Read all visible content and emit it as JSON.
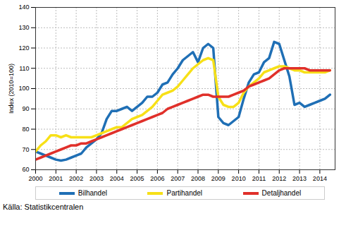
{
  "chart_data": {
    "type": "line",
    "y_label": "Index (2010=100)",
    "source": "Källa: Statistikcentralen",
    "x": [
      2000,
      2000.25,
      2000.5,
      2000.75,
      2001,
      2001.25,
      2001.5,
      2001.75,
      2002,
      2002.25,
      2002.5,
      2002.75,
      2003,
      2003.25,
      2003.5,
      2003.75,
      2004,
      2004.25,
      2004.5,
      2004.75,
      2005,
      2005.25,
      2005.5,
      2005.75,
      2006,
      2006.25,
      2006.5,
      2006.75,
      2007,
      2007.25,
      2007.5,
      2007.75,
      2008,
      2008.25,
      2008.5,
      2008.75,
      2009,
      2009.25,
      2009.5,
      2009.75,
      2010,
      2010.25,
      2010.5,
      2010.75,
      2011,
      2011.25,
      2011.5,
      2011.75,
      2012,
      2012.25,
      2012.5,
      2012.75,
      2013,
      2013.25,
      2013.5,
      2013.75,
      2014,
      2014.25,
      2014.5
    ],
    "series": [
      {
        "name": "Bilhandel",
        "color": "#1f6fb5",
        "values": [
          69,
          68,
          67,
          66,
          65,
          64.5,
          65,
          66,
          67,
          68,
          71,
          73,
          75,
          78,
          85,
          89,
          89,
          90,
          91,
          89,
          91,
          93,
          96,
          96,
          98,
          102,
          103,
          107,
          110,
          114,
          116,
          118,
          113,
          120,
          122,
          120,
          86,
          83,
          82,
          84,
          86,
          95,
          103,
          107,
          108,
          113,
          115,
          123,
          122,
          114,
          106,
          92,
          93,
          91,
          92,
          93,
          94,
          95,
          97
        ]
      },
      {
        "name": "Partihandel",
        "color": "#f7e017",
        "values": [
          69,
          72,
          74,
          77,
          77,
          76,
          77,
          76,
          76,
          76,
          76,
          76,
          77,
          78,
          79,
          80,
          81,
          81,
          83,
          85,
          86,
          87,
          89,
          91,
          94,
          97,
          98,
          99,
          101,
          104,
          107,
          110,
          112,
          114,
          115,
          114,
          96,
          92,
          91,
          91,
          93,
          98,
          101,
          103,
          105,
          108,
          109,
          110,
          111,
          111,
          110,
          109,
          109,
          108,
          108,
          108,
          108,
          108,
          109
        ]
      },
      {
        "name": "Detaljhandel",
        "color": "#e0302a",
        "values": [
          65,
          66,
          67,
          68,
          69,
          70,
          71,
          72,
          72,
          73,
          73,
          74,
          75,
          76,
          77,
          78,
          79,
          80,
          81,
          82,
          83,
          84,
          85,
          86,
          87,
          88,
          90,
          91,
          92,
          93,
          94,
          95,
          96,
          97,
          97,
          96,
          96,
          96,
          96,
          97,
          98,
          99,
          101,
          102,
          103,
          104,
          105,
          107,
          109,
          110,
          110,
          110,
          110,
          110,
          109,
          109,
          109,
          109,
          109
        ]
      }
    ],
    "xlim": [
      2000,
      2014.75
    ],
    "xticks": [
      2000,
      2001,
      2002,
      2003,
      2004,
      2005,
      2006,
      2007,
      2008,
      2009,
      2010,
      2011,
      2012,
      2013,
      2014
    ],
    "ylim": [
      60,
      140
    ],
    "yticks": [
      60,
      70,
      80,
      90,
      100,
      110,
      120,
      130,
      140
    ],
    "grid": true,
    "legend": "bottom"
  }
}
